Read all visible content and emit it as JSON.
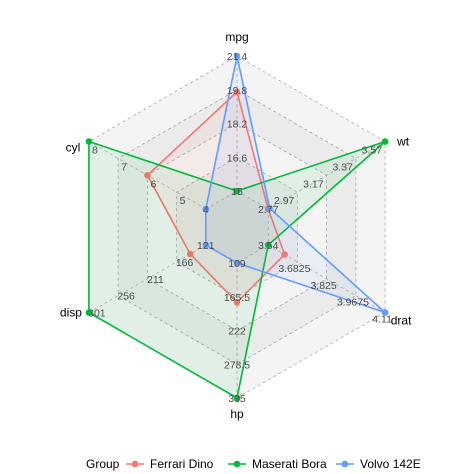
{
  "chart_data": {
    "type": "radar",
    "axes": [
      {
        "name": "mpg",
        "min": 15,
        "max": 21.4,
        "ticks": [
          "15",
          "16.6",
          "18.2",
          "19.8",
          "21.4"
        ]
      },
      {
        "name": "wt",
        "min": 2.77,
        "max": 3.57,
        "ticks": [
          "2.77",
          "2.97",
          "3.17",
          "3.37",
          "3.57"
        ]
      },
      {
        "name": "drat",
        "min": 3.54,
        "max": 4.11,
        "ticks": [
          "3.54",
          "3.6825",
          "3.825",
          "3.9675",
          "4.11"
        ]
      },
      {
        "name": "hp",
        "min": 109,
        "max": 335,
        "ticks": [
          "109",
          "165.5",
          "222",
          "278.5",
          "335"
        ]
      },
      {
        "name": "disp",
        "min": 121,
        "max": 301,
        "ticks": [
          "121",
          "166",
          "211",
          "256",
          "301"
        ]
      },
      {
        "name": "cyl",
        "min": 4,
        "max": 8,
        "ticks": [
          "4",
          "5",
          "6",
          "7",
          "8"
        ]
      }
    ],
    "series": [
      {
        "name": "Ferrari Dino",
        "color": "#F8766D",
        "values": [
          19.7,
          2.77,
          3.62,
          175,
          145,
          6
        ]
      },
      {
        "name": "Maserati Bora",
        "color": "#00BA38",
        "values": [
          15,
          3.57,
          3.54,
          335,
          301,
          8
        ]
      },
      {
        "name": "Volvo 142E",
        "color": "#619CFF",
        "values": [
          21.4,
          2.78,
          4.11,
          109,
          121,
          4
        ]
      }
    ],
    "legend": {
      "title": "Group",
      "position": "bottom"
    },
    "grid": true
  }
}
